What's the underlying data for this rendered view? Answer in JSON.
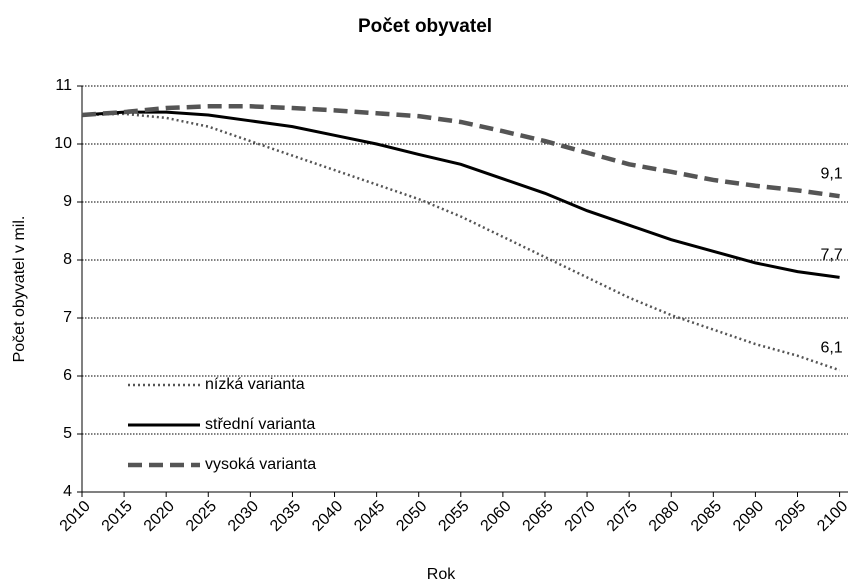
{
  "chart_data": {
    "type": "line",
    "title": "Počet obyvatel",
    "x_label": "Rok",
    "y_label": "Počet obyvatel v mil.",
    "x": [
      2010,
      2015,
      2020,
      2025,
      2030,
      2035,
      2040,
      2045,
      2050,
      2055,
      2060,
      2065,
      2070,
      2075,
      2080,
      2085,
      2090,
      2095,
      2100
    ],
    "series": [
      {
        "name": "nízká varianta",
        "color": "#555555",
        "style": "dotted",
        "values": [
          10.5,
          10.52,
          10.45,
          10.3,
          10.05,
          9.8,
          9.55,
          9.3,
          9.05,
          8.75,
          8.4,
          8.05,
          7.7,
          7.35,
          7.05,
          6.8,
          6.55,
          6.35,
          6.1
        ],
        "value_labels": [
          null,
          null,
          null,
          null,
          null,
          null,
          null,
          null,
          null,
          null,
          null,
          null,
          null,
          null,
          null,
          null,
          null,
          null,
          "6,1"
        ]
      },
      {
        "name": "střední varianta",
        "color": "#000000",
        "style": "solid",
        "values": [
          10.5,
          10.55,
          10.55,
          10.5,
          10.4,
          10.3,
          10.15,
          10.0,
          9.82,
          9.65,
          9.4,
          9.15,
          8.85,
          8.6,
          8.35,
          8.15,
          7.95,
          7.8,
          7.7
        ],
        "value_labels": [
          null,
          null,
          null,
          null,
          null,
          null,
          null,
          null,
          null,
          null,
          null,
          null,
          null,
          null,
          null,
          null,
          null,
          null,
          "7,7"
        ]
      },
      {
        "name": "vysoká varianta",
        "color": "#555555",
        "style": "dashed",
        "values": [
          10.5,
          10.55,
          10.62,
          10.65,
          10.65,
          10.62,
          10.58,
          10.53,
          10.48,
          10.38,
          10.22,
          10.05,
          9.85,
          9.65,
          9.52,
          9.38,
          9.28,
          9.2,
          9.1
        ],
        "value_labels": [
          null,
          null,
          null,
          null,
          null,
          null,
          null,
          null,
          null,
          null,
          null,
          null,
          null,
          null,
          null,
          null,
          null,
          null,
          "9,1"
        ]
      }
    ],
    "xlim": [
      2010,
      2101
    ],
    "xticks": [
      2010,
      2015,
      2020,
      2025,
      2030,
      2035,
      2040,
      2045,
      2050,
      2055,
      2060,
      2065,
      2070,
      2075,
      2080,
      2085,
      2090,
      2095,
      2100
    ],
    "ylim": [
      4,
      11
    ],
    "yticks": [
      4,
      5,
      6,
      7,
      8,
      9,
      10,
      11
    ],
    "grid": true,
    "legend": "lower left"
  }
}
